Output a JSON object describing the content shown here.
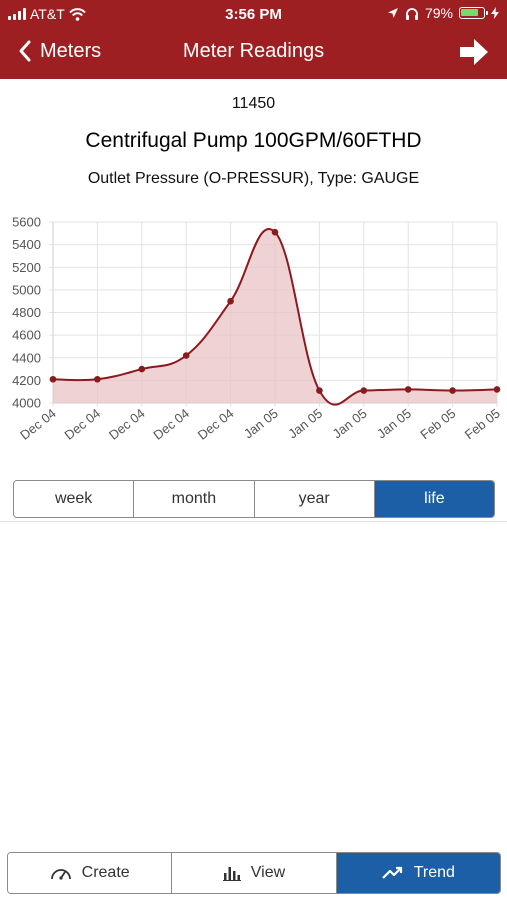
{
  "status_bar": {
    "carrier": "AT&T",
    "time": "3:56 PM",
    "battery_percent": "79%",
    "battery_level": 0.79,
    "icons": [
      "signal-icon",
      "wifi-icon",
      "location-icon",
      "headphones-icon",
      "battery-icon",
      "charging-icon"
    ]
  },
  "nav": {
    "back_label": "Meters",
    "title": "Meter Readings",
    "forward_icon": "arrow-right-icon"
  },
  "meter": {
    "id": "11450",
    "name": "Centrifugal Pump 100GPM/60FTHD",
    "reading": "Outlet Pressure (O-PRESSUR), Type: GAUGE"
  },
  "colors": {
    "header": "#9e1f22",
    "line": "#8b1a1e",
    "fill": "#e8c3c5",
    "active_button": "#1d5fa6"
  },
  "chart_data": {
    "type": "area",
    "categories": [
      "Dec 04",
      "Dec 04",
      "Dec 04",
      "Dec 04",
      "Dec 04",
      "Jan 05",
      "Jan 05",
      "Jan 05",
      "Jan 05",
      "Feb 05",
      "Feb 05"
    ],
    "values": [
      4210,
      4210,
      4300,
      4420,
      4900,
      5510,
      4110,
      4110,
      4120,
      4110,
      4120
    ],
    "yticks": [
      "5600",
      "5400",
      "5200",
      "5000",
      "4800",
      "4600",
      "4400",
      "4200",
      "4000"
    ],
    "ylim": [
      4000,
      5600
    ],
    "grid": true,
    "smooth": true
  },
  "range_buttons": [
    {
      "label": "week",
      "active": false
    },
    {
      "label": "month",
      "active": false
    },
    {
      "label": "year",
      "active": false
    },
    {
      "label": "life",
      "active": true
    }
  ],
  "toolbar": {
    "create_label": "Create",
    "view_label": "View",
    "trend_label": "Trend",
    "create_icon": "gauge-icon",
    "view_icon": "bar-chart-icon",
    "trend_icon": "trend-up-icon"
  }
}
